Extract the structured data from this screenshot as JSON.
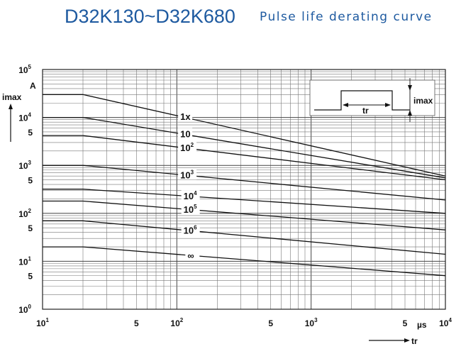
{
  "header": {
    "title": "D32K130~D32K680",
    "subtitle": "Pulse life derating curve"
  },
  "chart_data": {
    "type": "line",
    "title": "Pulse life derating curve",
    "xlabel": "tr",
    "ylabel": "imax",
    "x_unit": "µs",
    "y_unit": "A",
    "xscale": "log",
    "yscale": "log",
    "xlim": [
      10,
      10000
    ],
    "ylim": [
      1,
      100000
    ],
    "grid": true,
    "x_ticks": [
      {
        "mant": "",
        "base": "10",
        "exp": "1",
        "value": 10
      },
      {
        "mant": "5",
        "value": 50
      },
      {
        "mant": "",
        "base": "10",
        "exp": "2",
        "value": 100
      },
      {
        "mant": "5",
        "value": 500
      },
      {
        "mant": "",
        "base": "10",
        "exp": "3",
        "value": 1000
      },
      {
        "mant": "5",
        "value": 5000
      },
      {
        "mant": "",
        "base": "10",
        "exp": "4",
        "value": 10000
      }
    ],
    "y_ticks": [
      {
        "mant": "",
        "base": "10",
        "exp": "0",
        "value": 1
      },
      {
        "mant": "5",
        "value": 5
      },
      {
        "mant": "",
        "base": "10",
        "exp": "1",
        "value": 10
      },
      {
        "mant": "5",
        "value": 50
      },
      {
        "mant": "",
        "base": "10",
        "exp": "2",
        "value": 100
      },
      {
        "mant": "5",
        "value": 500
      },
      {
        "mant": "",
        "base": "10",
        "exp": "3",
        "value": 1000
      },
      {
        "mant": "5",
        "value": 5000
      },
      {
        "mant": "",
        "base": "10",
        "exp": "4",
        "value": 10000
      },
      {
        "mant": "",
        "base": "10",
        "exp": "5",
        "value": 100000
      }
    ],
    "series": [
      {
        "base": "1x",
        "exp": "",
        "points": [
          [
            10,
            30000
          ],
          [
            20,
            30000
          ],
          [
            10000,
            600
          ]
        ]
      },
      {
        "base": "10",
        "exp": "",
        "points": [
          [
            10,
            10000
          ],
          [
            20,
            10000
          ],
          [
            10000,
            550
          ]
        ]
      },
      {
        "base": "10",
        "exp": "2",
        "points": [
          [
            10,
            4200
          ],
          [
            20,
            4200
          ],
          [
            10000,
            500
          ]
        ]
      },
      {
        "base": "10",
        "exp": "3",
        "points": [
          [
            10,
            1000
          ],
          [
            20,
            1000
          ],
          [
            10000,
            190
          ]
        ]
      },
      {
        "base": "10",
        "exp": "4",
        "points": [
          [
            10,
            320
          ],
          [
            20,
            320
          ],
          [
            10000,
            100
          ]
        ]
      },
      {
        "base": "10",
        "exp": "5",
        "points": [
          [
            10,
            180
          ],
          [
            20,
            180
          ],
          [
            10000,
            45
          ]
        ]
      },
      {
        "base": "10",
        "exp": "6",
        "points": [
          [
            10,
            70
          ],
          [
            20,
            70
          ],
          [
            10000,
            14
          ]
        ]
      },
      {
        "base": "∞",
        "exp": "",
        "points": [
          [
            10,
            20
          ],
          [
            20,
            20
          ],
          [
            10000,
            5
          ]
        ]
      }
    ],
    "series_labels_x": [
      106,
      106,
      106,
      106,
      112,
      112,
      112,
      120
    ],
    "inset": {
      "tr_label": "tr",
      "imax_label": "imax"
    }
  }
}
